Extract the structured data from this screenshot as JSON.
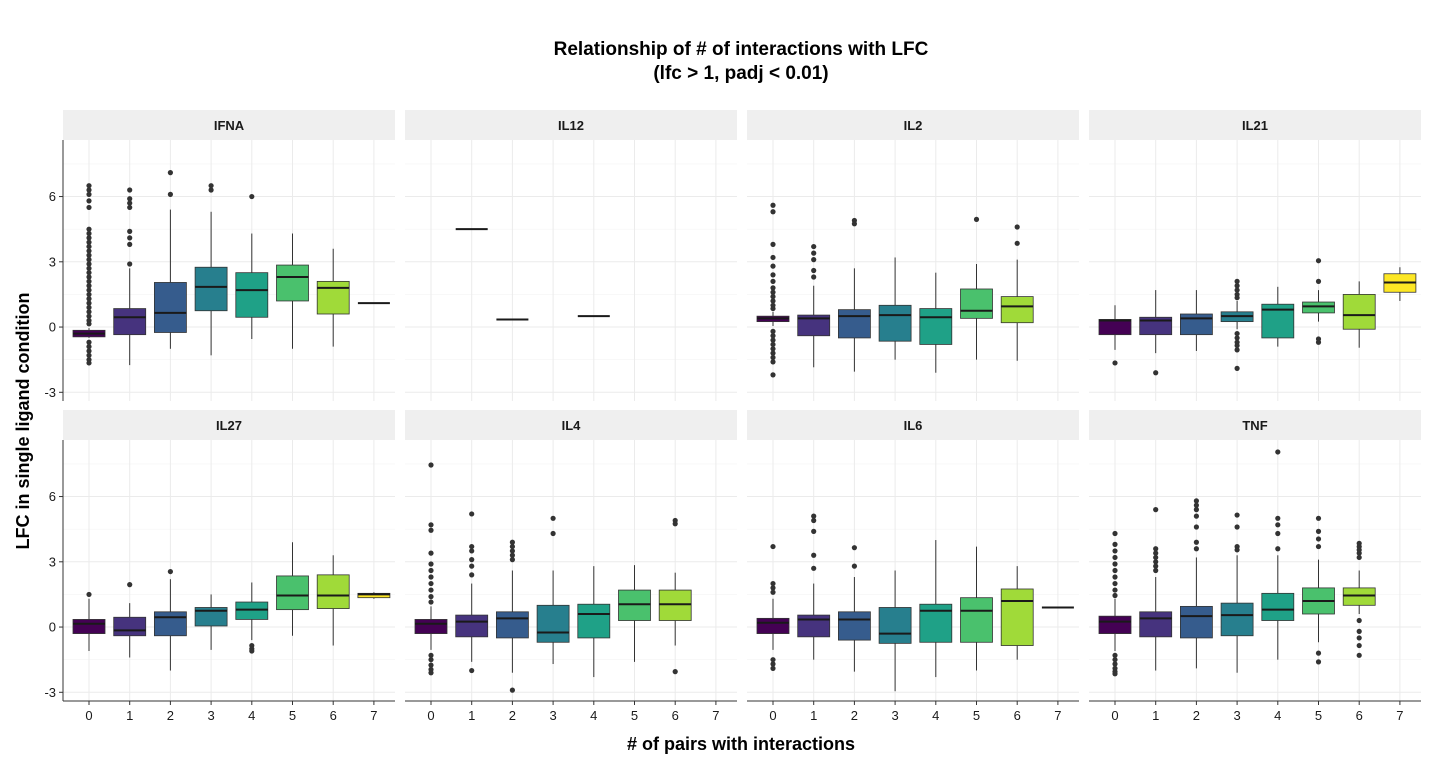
{
  "chart_data": {
    "type": "box",
    "title": "Relationship of # of interactions with LFC",
    "subtitle": "(lfc > 1, padj < 0.01)",
    "xlabel": "# of pairs with interactions",
    "ylabel": "LFC in single ligand condition",
    "x_categories": [
      "0",
      "1",
      "2",
      "3",
      "4",
      "5",
      "6",
      "7"
    ],
    "ylim": [
      -3.4,
      8.6
    ],
    "y_ticks": [
      -3,
      0,
      3,
      6
    ],
    "y_tick_labels": [
      "-3",
      "0",
      "3",
      "6"
    ],
    "grid": true,
    "legend": "none",
    "colors": {
      "0": "#440154",
      "1": "#46337e",
      "2": "#365c8d",
      "3": "#277f8e",
      "4": "#1fa187",
      "5": "#4ac16d",
      "6": "#a0da39",
      "7": "#fde725"
    },
    "panels": [
      {
        "label": "IFNA",
        "boxes": [
          {
            "x": 0,
            "q1": -0.45,
            "median": -0.3,
            "q3": -0.15,
            "whisker_low": -0.5,
            "whisker_high": -0.05,
            "outliers": [
              6.5,
              6.3,
              6.1,
              5.8,
              5.5,
              4.5,
              4.3,
              4.1,
              3.9,
              3.7,
              3.5,
              3.3,
              3.1,
              2.9,
              2.7,
              2.5,
              2.3,
              2.1,
              1.9,
              1.7,
              1.5,
              1.3,
              1.1,
              0.9,
              0.7,
              0.5,
              0.3,
              0.15,
              -0.7,
              -0.9,
              -1.1,
              -1.3,
              -1.5,
              -1.65
            ]
          },
          {
            "x": 1,
            "q1": -0.35,
            "median": 0.45,
            "q3": 0.85,
            "whisker_low": -1.75,
            "whisker_high": 2.7,
            "outliers": [
              6.3,
              5.9,
              5.7,
              5.5,
              4.4,
              4.1,
              3.8,
              2.9
            ]
          },
          {
            "x": 2,
            "q1": -0.25,
            "median": 0.65,
            "q3": 2.05,
            "whisker_low": -1.0,
            "whisker_high": 5.4,
            "outliers": [
              7.1,
              6.1
            ]
          },
          {
            "x": 3,
            "q1": 0.75,
            "median": 1.85,
            "q3": 2.75,
            "whisker_low": -1.3,
            "whisker_high": 5.3,
            "outliers": [
              6.5,
              6.3
            ]
          },
          {
            "x": 4,
            "q1": 0.45,
            "median": 1.7,
            "q3": 2.5,
            "whisker_low": -0.55,
            "whisker_high": 4.3,
            "outliers": [
              6.0
            ]
          },
          {
            "x": 5,
            "q1": 1.2,
            "median": 2.3,
            "q3": 2.85,
            "whisker_low": -1.0,
            "whisker_high": 4.3,
            "outliers": []
          },
          {
            "x": 6,
            "q1": 0.6,
            "median": 1.8,
            "q3": 2.1,
            "whisker_low": -0.9,
            "whisker_high": 3.6,
            "outliers": []
          },
          {
            "x": 7,
            "q1": 1.1,
            "median": 1.1,
            "q3": 1.1,
            "whisker_low": 1.1,
            "whisker_high": 1.1,
            "outliers": []
          }
        ]
      },
      {
        "label": "IL12",
        "boxes": [
          {
            "x": 1,
            "q1": 4.5,
            "median": 4.5,
            "q3": 4.5,
            "whisker_low": 4.5,
            "whisker_high": 4.5,
            "outliers": []
          },
          {
            "x": 2,
            "q1": 0.35,
            "median": 0.35,
            "q3": 0.35,
            "whisker_low": 0.35,
            "whisker_high": 0.35,
            "outliers": []
          },
          {
            "x": 4,
            "q1": 0.5,
            "median": 0.5,
            "q3": 0.5,
            "whisker_low": 0.5,
            "whisker_high": 0.5,
            "outliers": []
          }
        ]
      },
      {
        "label": "IL2",
        "boxes": [
          {
            "x": 0,
            "q1": 0.25,
            "median": 0.4,
            "q3": 0.5,
            "whisker_low": 0.05,
            "whisker_high": 0.7,
            "outliers": [
              5.6,
              5.3,
              3.8,
              3.2,
              2.8,
              2.4,
              2.1,
              1.8,
              1.6,
              1.4,
              1.2,
              1.0,
              0.85,
              -0.2,
              -0.4,
              -0.6,
              -0.8,
              -1.0,
              -1.2,
              -1.4,
              -1.6,
              -2.2
            ]
          },
          {
            "x": 1,
            "q1": -0.4,
            "median": 0.4,
            "q3": 0.55,
            "whisker_low": -1.85,
            "whisker_high": 1.9,
            "outliers": [
              3.7,
              3.4,
              3.1,
              2.6,
              2.3
            ]
          },
          {
            "x": 2,
            "q1": -0.5,
            "median": 0.5,
            "q3": 0.8,
            "whisker_low": -2.05,
            "whisker_high": 2.7,
            "outliers": [
              4.9,
              4.75
            ]
          },
          {
            "x": 3,
            "q1": -0.65,
            "median": 0.55,
            "q3": 1.0,
            "whisker_low": -1.5,
            "whisker_high": 3.2,
            "outliers": []
          },
          {
            "x": 4,
            "q1": -0.8,
            "median": 0.45,
            "q3": 0.85,
            "whisker_low": -2.1,
            "whisker_high": 2.5,
            "outliers": []
          },
          {
            "x": 5,
            "q1": 0.4,
            "median": 0.75,
            "q3": 1.75,
            "whisker_low": -1.5,
            "whisker_high": 2.9,
            "outliers": [
              4.95
            ]
          },
          {
            "x": 6,
            "q1": 0.2,
            "median": 0.95,
            "q3": 1.4,
            "whisker_low": -1.55,
            "whisker_high": 3.1,
            "outliers": [
              4.6,
              3.85
            ]
          }
        ]
      },
      {
        "label": "IL21",
        "boxes": [
          {
            "x": 0,
            "q1": -0.35,
            "median": 0.3,
            "q3": 0.35,
            "whisker_low": -1.05,
            "whisker_high": 1.0,
            "outliers": [
              -1.65
            ]
          },
          {
            "x": 1,
            "q1": -0.35,
            "median": 0.3,
            "q3": 0.45,
            "whisker_low": -1.2,
            "whisker_high": 1.7,
            "outliers": [
              -2.1
            ]
          },
          {
            "x": 2,
            "q1": -0.35,
            "median": 0.4,
            "q3": 0.6,
            "whisker_low": -1.1,
            "whisker_high": 1.7,
            "outliers": []
          },
          {
            "x": 3,
            "q1": 0.25,
            "median": 0.5,
            "q3": 0.7,
            "whisker_low": -0.1,
            "whisker_high": 1.2,
            "outliers": [
              2.1,
              1.9,
              1.7,
              1.5,
              1.35,
              -0.3,
              -0.5,
              -0.7,
              -0.85,
              -1.05,
              -1.9
            ]
          },
          {
            "x": 4,
            "q1": -0.5,
            "median": 0.8,
            "q3": 1.05,
            "whisker_low": -0.9,
            "whisker_high": 1.85,
            "outliers": []
          },
          {
            "x": 5,
            "q1": 0.65,
            "median": 0.95,
            "q3": 1.15,
            "whisker_low": 0.25,
            "whisker_high": 1.7,
            "outliers": [
              3.05,
              2.1,
              -0.55,
              -0.7
            ]
          },
          {
            "x": 6,
            "q1": -0.1,
            "median": 0.55,
            "q3": 1.5,
            "whisker_low": -0.95,
            "whisker_high": 2.1,
            "outliers": []
          },
          {
            "x": 7,
            "q1": 1.6,
            "median": 2.05,
            "q3": 2.45,
            "whisker_low": 1.2,
            "whisker_high": 2.75,
            "outliers": []
          }
        ]
      },
      {
        "label": "IL27",
        "boxes": [
          {
            "x": 0,
            "q1": -0.3,
            "median": 0.15,
            "q3": 0.35,
            "whisker_low": -1.1,
            "whisker_high": 1.3,
            "outliers": [
              1.5
            ]
          },
          {
            "x": 1,
            "q1": -0.4,
            "median": -0.15,
            "q3": 0.45,
            "whisker_low": -1.4,
            "whisker_high": 1.1,
            "outliers": [
              1.95
            ]
          },
          {
            "x": 2,
            "q1": -0.4,
            "median": 0.45,
            "q3": 0.7,
            "whisker_low": -2.0,
            "whisker_high": 2.2,
            "outliers": [
              2.55
            ]
          },
          {
            "x": 3,
            "q1": 0.05,
            "median": 0.75,
            "q3": 0.9,
            "whisker_low": -1.05,
            "whisker_high": 1.5,
            "outliers": []
          },
          {
            "x": 4,
            "q1": 0.35,
            "median": 0.8,
            "q3": 1.15,
            "whisker_low": -0.6,
            "whisker_high": 2.05,
            "outliers": [
              -0.85,
              -1.0,
              -1.1
            ]
          },
          {
            "x": 5,
            "q1": 0.8,
            "median": 1.45,
            "q3": 2.35,
            "whisker_low": -0.4,
            "whisker_high": 3.9,
            "outliers": []
          },
          {
            "x": 6,
            "q1": 0.85,
            "median": 1.45,
            "q3": 2.4,
            "whisker_low": -0.85,
            "whisker_high": 3.3,
            "outliers": []
          },
          {
            "x": 7,
            "q1": 1.35,
            "median": 1.5,
            "q3": 1.55,
            "whisker_low": 1.3,
            "whisker_high": 1.6,
            "outliers": []
          }
        ]
      },
      {
        "label": "IL4",
        "boxes": [
          {
            "x": 0,
            "q1": -0.3,
            "median": 0.15,
            "q3": 0.35,
            "whisker_low": -1.05,
            "whisker_high": 0.95,
            "outliers": [
              7.45,
              4.7,
              4.45,
              3.4,
              2.9,
              2.6,
              2.3,
              2.0,
              1.7,
              1.4,
              1.15,
              -1.3,
              -1.5,
              -1.75,
              -1.95,
              -2.1
            ]
          },
          {
            "x": 1,
            "q1": -0.45,
            "median": 0.25,
            "q3": 0.55,
            "whisker_low": -1.6,
            "whisker_high": 2.0,
            "outliers": [
              5.2,
              3.7,
              3.5,
              3.1,
              2.8,
              2.4,
              -2.0
            ]
          },
          {
            "x": 2,
            "q1": -0.5,
            "median": 0.4,
            "q3": 0.7,
            "whisker_low": -2.1,
            "whisker_high": 2.6,
            "outliers": [
              3.9,
              3.7,
              3.5,
              3.3,
              3.1,
              -2.9
            ]
          },
          {
            "x": 3,
            "q1": -0.7,
            "median": -0.25,
            "q3": 1.0,
            "whisker_low": -1.7,
            "whisker_high": 2.6,
            "outliers": [
              5.0,
              4.3
            ]
          },
          {
            "x": 4,
            "q1": -0.5,
            "median": 0.6,
            "q3": 1.05,
            "whisker_low": -2.3,
            "whisker_high": 2.8,
            "outliers": []
          },
          {
            "x": 5,
            "q1": 0.3,
            "median": 1.05,
            "q3": 1.7,
            "whisker_low": -1.6,
            "whisker_high": 2.85,
            "outliers": []
          },
          {
            "x": 6,
            "q1": 0.3,
            "median": 1.05,
            "q3": 1.7,
            "whisker_low": -0.85,
            "whisker_high": 2.5,
            "outliers": [
              4.9,
              4.75,
              -2.05
            ]
          }
        ]
      },
      {
        "label": "IL6",
        "boxes": [
          {
            "x": 0,
            "q1": -0.3,
            "median": 0.2,
            "q3": 0.4,
            "whisker_low": -1.05,
            "whisker_high": 1.3,
            "outliers": [
              3.7,
              2.0,
              1.8,
              1.6,
              -1.5,
              -1.7,
              -1.9
            ]
          },
          {
            "x": 1,
            "q1": -0.45,
            "median": 0.35,
            "q3": 0.55,
            "whisker_low": -1.5,
            "whisker_high": 2.0,
            "outliers": [
              5.1,
              4.9,
              4.4,
              3.3,
              2.7
            ]
          },
          {
            "x": 2,
            "q1": -0.6,
            "median": 0.35,
            "q3": 0.7,
            "whisker_low": -2.05,
            "whisker_high": 2.3,
            "outliers": [
              3.65,
              2.8
            ]
          },
          {
            "x": 3,
            "q1": -0.75,
            "median": -0.3,
            "q3": 0.9,
            "whisker_low": -2.95,
            "whisker_high": 2.6,
            "outliers": []
          },
          {
            "x": 4,
            "q1": -0.7,
            "median": 0.75,
            "q3": 1.05,
            "whisker_low": -2.3,
            "whisker_high": 4.0,
            "outliers": []
          },
          {
            "x": 5,
            "q1": -0.7,
            "median": 0.75,
            "q3": 1.35,
            "whisker_low": -2.0,
            "whisker_high": 3.7,
            "outliers": []
          },
          {
            "x": 6,
            "q1": -0.85,
            "median": 1.2,
            "q3": 1.75,
            "whisker_low": -1.5,
            "whisker_high": 2.8,
            "outliers": []
          },
          {
            "x": 7,
            "q1": 0.9,
            "median": 0.9,
            "q3": 0.9,
            "whisker_low": 0.9,
            "whisker_high": 0.9,
            "outliers": []
          }
        ]
      },
      {
        "label": "TNF",
        "boxes": [
          {
            "x": 0,
            "q1": -0.3,
            "median": 0.25,
            "q3": 0.5,
            "whisker_low": -1.1,
            "whisker_high": 1.3,
            "outliers": [
              4.3,
              3.8,
              3.5,
              3.2,
              2.9,
              2.6,
              2.3,
              2.0,
              1.7,
              1.45,
              -1.3,
              -1.5,
              -1.7,
              -1.9,
              -2.05,
              -2.15
            ]
          },
          {
            "x": 1,
            "q1": -0.45,
            "median": 0.4,
            "q3": 0.7,
            "whisker_low": -2.0,
            "whisker_high": 2.3,
            "outliers": [
              5.4,
              3.6,
              3.4,
              3.2,
              3.0,
              2.8,
              2.6
            ]
          },
          {
            "x": 2,
            "q1": -0.5,
            "median": 0.5,
            "q3": 0.95,
            "whisker_low": -1.9,
            "whisker_high": 3.2,
            "outliers": [
              5.8,
              5.6,
              5.4,
              5.1,
              4.6,
              3.9,
              3.6
            ]
          },
          {
            "x": 3,
            "q1": -0.4,
            "median": 0.55,
            "q3": 1.1,
            "whisker_low": -2.1,
            "whisker_high": 3.3,
            "outliers": [
              5.15,
              4.6,
              3.7,
              3.55
            ]
          },
          {
            "x": 4,
            "q1": 0.3,
            "median": 0.8,
            "q3": 1.55,
            "whisker_low": -1.5,
            "whisker_high": 3.3,
            "outliers": [
              8.05,
              5.0,
              4.7,
              4.3,
              3.6
            ]
          },
          {
            "x": 5,
            "q1": 0.6,
            "median": 1.2,
            "q3": 1.8,
            "whisker_low": -0.7,
            "whisker_high": 3.1,
            "outliers": [
              5.0,
              4.4,
              4.05,
              3.7,
              -1.2,
              -1.6
            ]
          },
          {
            "x": 6,
            "q1": 1.0,
            "median": 1.45,
            "q3": 1.8,
            "whisker_low": 0.6,
            "whisker_high": 2.6,
            "outliers": [
              3.85,
              3.7,
              3.55,
              3.4,
              3.2,
              0.3,
              -0.2,
              -0.5,
              -0.85,
              -1.3
            ]
          }
        ]
      }
    ]
  }
}
